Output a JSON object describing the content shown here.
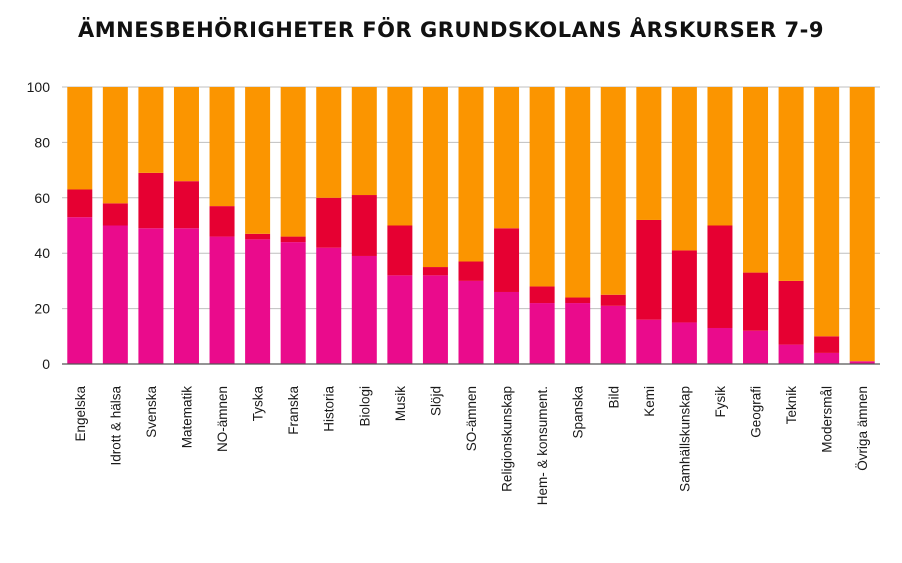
{
  "colors": {
    "series_1": "#ea0b8c",
    "series_2": "#e60032",
    "series_3": "#fb9500",
    "grid": "#bfbfbf",
    "axis": "#555555"
  },
  "chart_data": {
    "type": "bar",
    "stacked": true,
    "title": "ÄMNESBEHÖRIGHETER FÖR GRUNDSKOLANS ÅRSKURSER 7-9",
    "xlabel": "",
    "ylabel": "",
    "ylim": [
      0,
      100
    ],
    "yticks": [
      0,
      20,
      40,
      60,
      80,
      100
    ],
    "grid": true,
    "legend": "none",
    "categories": [
      "Engelska",
      "Idrott & hälsa",
      "Svenska",
      "Matematik",
      "NO-ämnen",
      "Tyska",
      "Franska",
      "Historia",
      "Biologi",
      "Musik",
      "Slöjd",
      "SO-ämnen",
      "Religionskunskap",
      "Hem- & konsument.",
      "Spanska",
      "Bild",
      "Kemi",
      "Samhällskunskap",
      "Fysik",
      "Geografi",
      "Teknik",
      "Modersmål",
      "Övriga ämnen"
    ],
    "series": [
      {
        "color": "#ea0b8c",
        "values": [
          53,
          50,
          49,
          49,
          46,
          45,
          44,
          42,
          39,
          32,
          32,
          30,
          26,
          22,
          22,
          21,
          16,
          15,
          13,
          12,
          7,
          4,
          1
        ]
      },
      {
        "color": "#e60032",
        "values": [
          10,
          8,
          20,
          17,
          11,
          2,
          2,
          18,
          22,
          18,
          3,
          7,
          23,
          6,
          2,
          4,
          36,
          26,
          37,
          21,
          23,
          6,
          0
        ]
      },
      {
        "color": "#fb9500",
        "values": [
          37,
          42,
          31,
          34,
          43,
          53,
          54,
          40,
          39,
          50,
          65,
          63,
          51,
          72,
          76,
          75,
          48,
          59,
          50,
          67,
          70,
          90,
          99
        ]
      }
    ]
  }
}
